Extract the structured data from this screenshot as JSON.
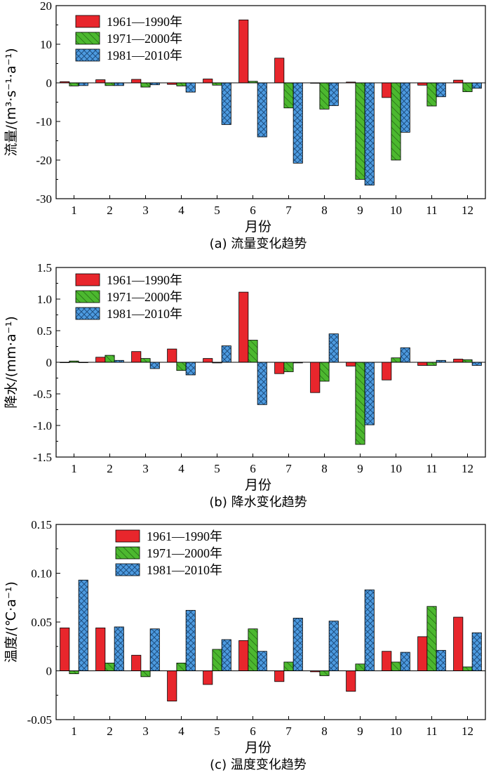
{
  "colors": {
    "s1": "#e8262c",
    "s2": "#4cb82f",
    "s3": "#4d9be0"
  },
  "chart_data": [
    {
      "type": "bar",
      "title": "",
      "caption": "(a) 流量变化趋势",
      "xlabel": "月份",
      "ylabel": "流量/(m³·s⁻¹·a⁻¹)",
      "ylim": [
        -30,
        20
      ],
      "yticks": [
        -30,
        -20,
        -10,
        0,
        10,
        20
      ],
      "ytick_labels": [
        "-30",
        "-20",
        "-10",
        "0",
        "10",
        "20"
      ],
      "legend": "top-left",
      "categories": [
        "1",
        "2",
        "3",
        "4",
        "5",
        "6",
        "7",
        "8",
        "9",
        "10",
        "11",
        "12"
      ],
      "series": [
        {
          "name": "1961—1990年",
          "values": [
            0.3,
            0.8,
            0.9,
            -0.4,
            1.0,
            16.3,
            6.4,
            -0.1,
            0.2,
            -3.8,
            -0.6,
            0.7
          ]
        },
        {
          "name": "1971—2000年",
          "values": [
            -0.8,
            -0.7,
            -1.1,
            -0.8,
            -0.6,
            0.4,
            -6.5,
            -6.8,
            -25.0,
            -20.0,
            -6.0,
            -2.3
          ]
        },
        {
          "name": "1981—2010年",
          "values": [
            -0.7,
            -0.7,
            -0.5,
            -2.4,
            -10.8,
            -14.0,
            -20.8,
            -5.9,
            -26.5,
            -12.8,
            -3.6,
            -1.4
          ]
        }
      ]
    },
    {
      "type": "bar",
      "title": "",
      "caption": "(b) 降水变化趋势",
      "xlabel": "月份",
      "ylabel": "降水/(mm·a⁻¹)",
      "ylim": [
        -1.5,
        1.5
      ],
      "yticks": [
        -1.5,
        -1.0,
        -0.5,
        0,
        0.5,
        1.0,
        1.5
      ],
      "ytick_labels": [
        "-1.5",
        "-1.0",
        "-0.5",
        "0",
        "0.5",
        "1.0",
        "1.5"
      ],
      "legend": "top-left",
      "categories": [
        "1",
        "2",
        "3",
        "4",
        "5",
        "6",
        "7",
        "8",
        "9",
        "10",
        "11",
        "12"
      ],
      "series": [
        {
          "name": "1961—1990年",
          "values": [
            0.0,
            0.08,
            0.17,
            0.21,
            0.06,
            1.11,
            -0.18,
            -0.48,
            -0.06,
            -0.28,
            -0.05,
            0.05
          ]
        },
        {
          "name": "1971—2000年",
          "values": [
            0.02,
            0.11,
            0.06,
            -0.13,
            -0.01,
            0.35,
            -0.15,
            -0.3,
            -1.3,
            0.07,
            -0.05,
            0.04
          ]
        },
        {
          "name": "1981—2010年",
          "values": [
            0.0,
            0.03,
            -0.1,
            -0.2,
            0.26,
            -0.67,
            -0.01,
            0.45,
            -0.99,
            0.23,
            0.03,
            -0.05
          ]
        }
      ]
    },
    {
      "type": "bar",
      "title": "",
      "caption": "(c) 温度变化趋势",
      "xlabel": "月份",
      "ylabel": "温度/(℃·a⁻¹)",
      "ylim": [
        -0.05,
        0.15
      ],
      "yticks": [
        -0.05,
        0,
        0.05,
        0.1,
        0.15
      ],
      "ytick_labels": [
        "-0.05",
        "0",
        "0.05",
        "0.10",
        "0.15"
      ],
      "legend": "top-center",
      "categories": [
        "1",
        "2",
        "3",
        "4",
        "5",
        "6",
        "7",
        "8",
        "9",
        "10",
        "11",
        "12"
      ],
      "series": [
        {
          "name": "1961—1990年",
          "values": [
            0.044,
            0.044,
            0.016,
            -0.031,
            -0.014,
            0.031,
            -0.011,
            -0.001,
            -0.021,
            0.02,
            0.035,
            0.055
          ]
        },
        {
          "name": "1971—2000年",
          "values": [
            -0.003,
            0.008,
            -0.006,
            0.008,
            0.022,
            0.043,
            0.009,
            -0.005,
            0.007,
            0.009,
            0.066,
            0.004
          ]
        },
        {
          "name": "1981—2010年",
          "values": [
            0.093,
            0.045,
            0.043,
            0.062,
            0.032,
            0.02,
            0.054,
            0.051,
            0.083,
            0.019,
            0.021,
            0.039
          ]
        }
      ]
    }
  ]
}
